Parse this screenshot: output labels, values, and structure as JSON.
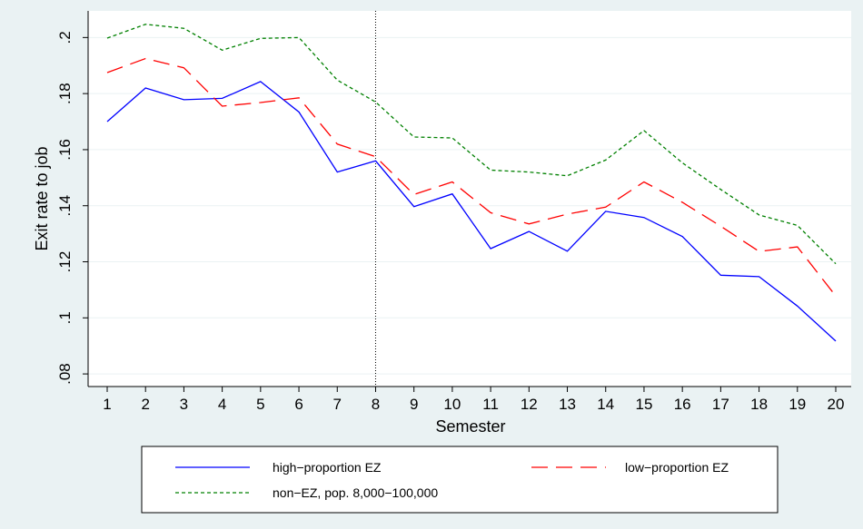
{
  "chart_data": {
    "type": "line",
    "xlabel": "Semester",
    "ylabel": "Exit rate to job",
    "x": [
      1,
      2,
      3,
      4,
      5,
      6,
      7,
      8,
      9,
      10,
      11,
      12,
      13,
      14,
      15,
      16,
      17,
      18,
      19,
      20
    ],
    "x_tick_labels": [
      "1",
      "2",
      "3",
      "4",
      "5",
      "6",
      "7",
      "8",
      "9",
      "10",
      "11",
      "12",
      "13",
      "14",
      "15",
      "16",
      "17",
      "18",
      "19",
      "20"
    ],
    "y_ticks": [
      0.08,
      0.1,
      0.12,
      0.14,
      0.16,
      0.18,
      0.2
    ],
    "y_tick_labels": [
      ".08",
      ".1",
      ".12",
      ".14",
      ".16",
      ".18",
      ".2"
    ],
    "xlim": [
      0.75,
      20.1
    ],
    "ylim": [
      0.0755,
      0.2095
    ],
    "reference_line_x": 8,
    "grid": true,
    "legend_position": "bottom",
    "series": [
      {
        "name": "high−proportion EZ",
        "color": "#0000ff",
        "style": "solid",
        "values": [
          0.17,
          0.182,
          0.1778,
          0.1783,
          0.1843,
          0.1734,
          0.152,
          0.156,
          0.1397,
          0.1442,
          0.1247,
          0.1308,
          0.1238,
          0.138,
          0.1358,
          0.129,
          0.1152,
          0.1147,
          0.1042,
          0.0917
        ]
      },
      {
        "name": "low−proportion EZ",
        "color": "#ff0000",
        "style": "longdash",
        "values": [
          0.1875,
          0.1925,
          0.1892,
          0.1755,
          0.1768,
          0.1785,
          0.162,
          0.1575,
          0.144,
          0.1485,
          0.1375,
          0.1335,
          0.137,
          0.1395,
          0.1485,
          0.1412,
          0.1327,
          0.1237,
          0.1253,
          0.1078
        ]
      },
      {
        "name": "non−EZ, pop. 8,000−100,000",
        "color": "#008000",
        "style": "shortdash",
        "values": [
          0.1998,
          0.2047,
          0.2033,
          0.1955,
          0.1997,
          0.2,
          0.1848,
          0.177,
          0.1645,
          0.1642,
          0.1527,
          0.152,
          0.1507,
          0.1563,
          0.1668,
          0.1553,
          0.1458,
          0.1367,
          0.133,
          0.1193
        ]
      }
    ]
  }
}
